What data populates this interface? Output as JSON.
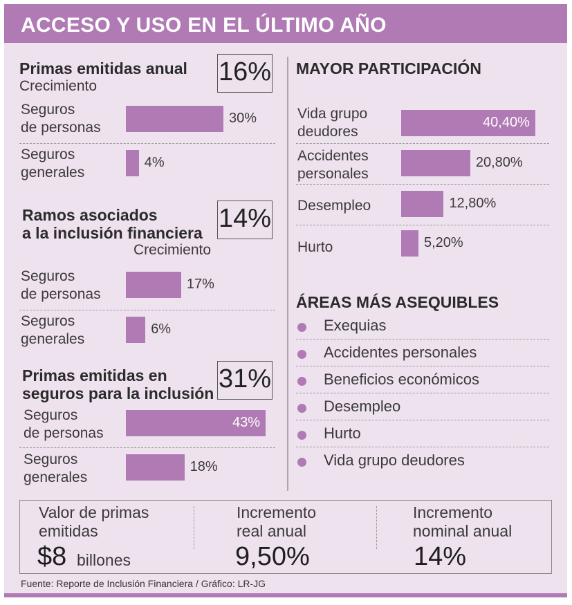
{
  "title": "ACCESO Y USO EN EL ÚLTIMO AÑO",
  "chart_data": [
    {
      "type": "bar",
      "title": "Primas emitidas anual",
      "subtitle": "Crecimiento",
      "total_label": "16%",
      "categories": [
        "Seguros de personas",
        "Seguros generales"
      ],
      "category_lines": [
        [
          "Seguros",
          "de personas"
        ],
        [
          "Seguros",
          "generales"
        ]
      ],
      "values": [
        30,
        4
      ],
      "value_labels": [
        "30%",
        "4%"
      ]
    },
    {
      "type": "bar",
      "title_lines": [
        "Ramos asociados",
        "a la inclusión financiera"
      ],
      "subtitle": "Crecimiento",
      "total_label": "14%",
      "categories": [
        "Seguros de personas",
        "Seguros generales"
      ],
      "category_lines": [
        [
          "Seguros",
          "de personas"
        ],
        [
          "Seguros",
          "generales"
        ]
      ],
      "values": [
        17,
        6
      ],
      "value_labels": [
        "17%",
        "6%"
      ]
    },
    {
      "type": "bar",
      "title_lines": [
        "Primas emitidas en",
        "seguros para la inclusión"
      ],
      "total_label": "31%",
      "categories": [
        "Seguros de personas",
        "Seguros generales"
      ],
      "category_lines": [
        [
          "Seguros",
          "de personas"
        ],
        [
          "Seguros",
          "generales"
        ]
      ],
      "values": [
        43,
        18
      ],
      "value_labels": [
        "43%",
        "18%"
      ]
    },
    {
      "type": "bar",
      "title": "MAYOR PARTICIPACIÓN",
      "categories": [
        "Vida grupo deudores",
        "Accidentes personales",
        "Desempleo",
        "Hurto"
      ],
      "category_lines": [
        [
          "Vida grupo",
          "deudores"
        ],
        [
          "Accidentes",
          "personales"
        ],
        [
          "Desempleo"
        ],
        [
          "Hurto"
        ]
      ],
      "values": [
        40.4,
        20.8,
        12.8,
        5.2
      ],
      "value_labels": [
        "40,40%",
        "20,80%",
        "12,80%",
        "5,20%"
      ]
    }
  ],
  "areas": {
    "title": "ÁREAS MÁS ASEQUIBLES",
    "items": [
      "Exequias",
      "Accidentes personales",
      "Beneficios económicos",
      "Desempleo",
      "Hurto",
      "Vida grupo deudores"
    ]
  },
  "stats": [
    {
      "label_lines": [
        "Valor de primas",
        "emitidas"
      ],
      "value": "$8",
      "unit": "billones"
    },
    {
      "label_lines": [
        "Incremento",
        "real anual"
      ],
      "value": "9,50%"
    },
    {
      "label_lines": [
        "Incremento",
        "nominal anual"
      ],
      "value": "14%"
    }
  ],
  "source": "Fuente: Reporte de Inclusión Financiera  / Gráfico: LR-JG",
  "colors": {
    "accent": "#b07ab4",
    "background": "#eee2ef",
    "text": "#2b2b2b"
  }
}
